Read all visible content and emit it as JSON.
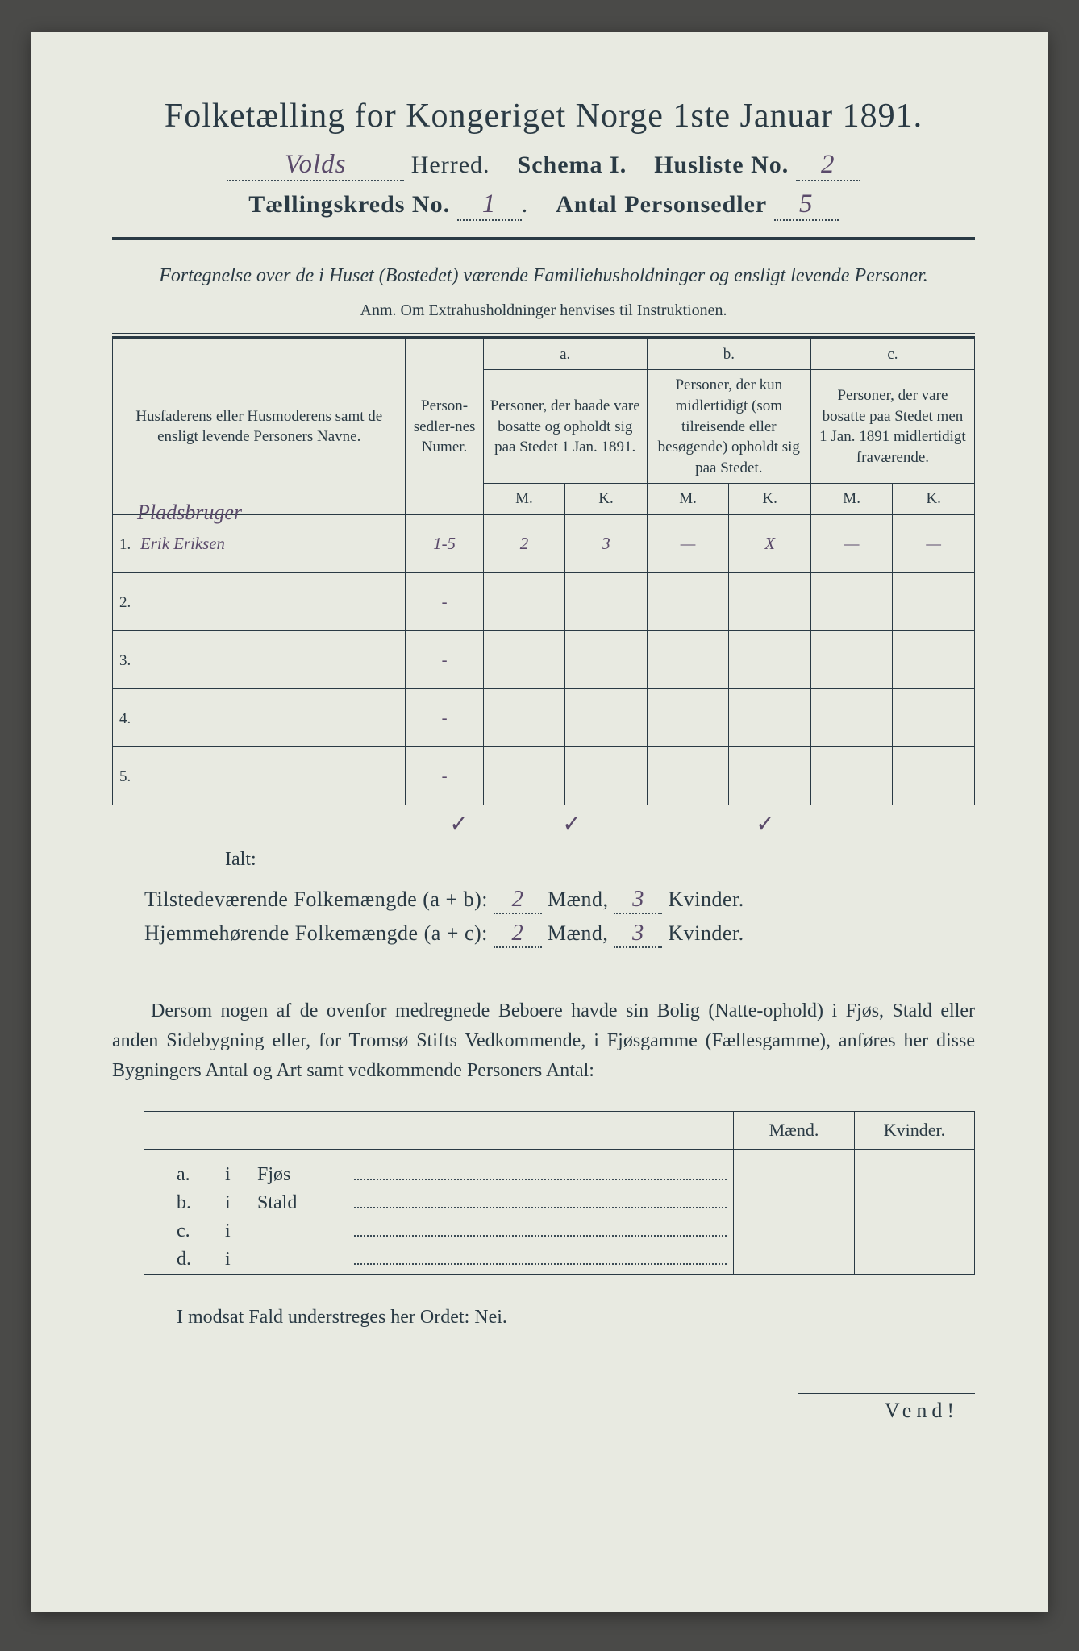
{
  "title": "Folketælling for Kongeriget Norge 1ste Januar 1891.",
  "header": {
    "herred_value": "Volds",
    "herred_label": "Herred.",
    "schema_label": "Schema I.",
    "husliste_label": "Husliste No.",
    "husliste_value": "2",
    "kreds_label": "Tællingskreds No.",
    "kreds_value": "1",
    "sedler_label": "Antal Personsedler",
    "sedler_value": "5"
  },
  "intro": "Fortegnelse over de i Huset (Bostedet) værende Familiehusholdninger og ensligt levende Personer.",
  "anm": "Anm. Om Extrahusholdninger henvises til Instruktionen.",
  "table": {
    "col_name": "Husfaderens eller Husmoderens samt de ensligt levende Personers Navne.",
    "col_num": "Person-sedler-nes Numer.",
    "col_a_letter": "a.",
    "col_a": "Personer, der baade vare bosatte og opholdt sig paa Stedet 1 Jan. 1891.",
    "col_b_letter": "b.",
    "col_b": "Personer, der kun midlertidigt (som tilreisende eller besøgende) opholdt sig paa Stedet.",
    "col_c_letter": "c.",
    "col_c": "Personer, der vare bosatte paa Stedet men 1 Jan. 1891 midlertidigt fraværende.",
    "M": "M.",
    "K": "K.",
    "rows": [
      {
        "n": "1.",
        "occupation": "Pladsbruger",
        "name": "Erik Eriksen",
        "num": "1-5",
        "aM": "2",
        "aK": "3",
        "bM": "—",
        "bK": "X",
        "cM": "—",
        "cK": "—"
      },
      {
        "n": "2.",
        "name": "",
        "num": "-",
        "aM": "",
        "aK": "",
        "bM": "",
        "bK": "",
        "cM": "",
        "cK": ""
      },
      {
        "n": "3.",
        "name": "",
        "num": "-",
        "aM": "",
        "aK": "",
        "bM": "",
        "bK": "",
        "cM": "",
        "cK": ""
      },
      {
        "n": "4.",
        "name": "",
        "num": "-",
        "aM": "",
        "aK": "",
        "bM": "",
        "bK": "",
        "cM": "",
        "cK": ""
      },
      {
        "n": "5.",
        "name": "",
        "num": "-",
        "aM": "",
        "aK": "",
        "bM": "",
        "bK": "",
        "cM": "",
        "cK": ""
      }
    ],
    "ialt": "Ialt:",
    "checks": {
      "a": "✓",
      "b": "✓",
      "c": "✓"
    }
  },
  "summary": {
    "line1_label": "Tilstedeværende Folkemængde (a + b):",
    "line1_m": "2",
    "line1_k": "3",
    "line2_label": "Hjemmehørende Folkemængde (a + c):",
    "line2_m": "2",
    "line2_k": "3",
    "maend": "Mænd,",
    "kvinder": "Kvinder."
  },
  "paragraph": "Dersom nogen af de ovenfor medregnede Beboere havde sin Bolig (Natte-ophold) i Fjøs, Stald eller anden Sidebygning eller, for Tromsø Stifts Vedkommende, i Fjøsgamme (Fællesgamme), anføres her disse Bygningers Antal og Art samt vedkommende Personers Antal:",
  "buildings": {
    "maend": "Mænd.",
    "kvinder": "Kvinder.",
    "rows": [
      {
        "l": "a.",
        "i": "i",
        "name": "Fjøs"
      },
      {
        "l": "b.",
        "i": "i",
        "name": "Stald"
      },
      {
        "l": "c.",
        "i": "i",
        "name": ""
      },
      {
        "l": "d.",
        "i": "i",
        "name": ""
      }
    ]
  },
  "nei": "I modsat Fald understreges her Ordet: Nei.",
  "vend": "Vend!"
}
